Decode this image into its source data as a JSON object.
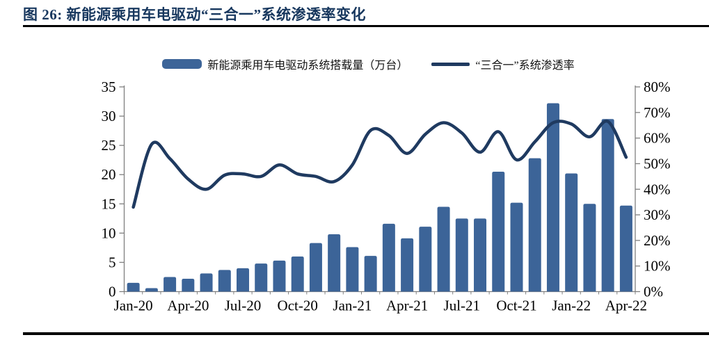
{
  "figure": {
    "title": "图 26:  新能源乘用车电驱动“三合一”系统渗透率变化"
  },
  "legend": {
    "bar_label": "新能源乘用车电驱动系统搭载量（万台）",
    "line_label": "“三合一”系统渗透率"
  },
  "colors": {
    "bar": "#3C6498",
    "line": "#1F3A60",
    "title": "#17375E",
    "axis": "#7f7f7f",
    "tick_text": "#000000",
    "rule": "#000000"
  },
  "chart_data": {
    "type": "bar+line combo",
    "title": "图 26: 新能源乘用车电驱动“三合一”系统渗透率变化",
    "categories": [
      "Jan-20",
      "Feb-20",
      "Mar-20",
      "Apr-20",
      "May-20",
      "Jun-20",
      "Jul-20",
      "Aug-20",
      "Sep-20",
      "Oct-20",
      "Nov-20",
      "Dec-20",
      "Jan-21",
      "Feb-21",
      "Mar-21",
      "Apr-21",
      "May-21",
      "Jun-21",
      "Jul-21",
      "Aug-21",
      "Sep-21",
      "Oct-21",
      "Nov-21",
      "Dec-21",
      "Jan-22",
      "Feb-22",
      "Mar-22",
      "Apr-22"
    ],
    "x_tick_labels": [
      "Jan-20",
      "Apr-20",
      "Jul-20",
      "Oct-20",
      "Jan-21",
      "Apr-21",
      "Jul-21",
      "Oct-21",
      "Jan-22",
      "Apr-22"
    ],
    "x_tick_every": 3,
    "series": [
      {
        "name": "新能源乘用车电驱动系统搭载量（万台）",
        "type": "bar",
        "axis": "left",
        "values": [
          1.5,
          0.6,
          2.5,
          2.2,
          3.1,
          3.7,
          4.0,
          4.8,
          5.3,
          6.0,
          8.3,
          9.8,
          7.6,
          6.1,
          11.6,
          9.1,
          11.1,
          14.5,
          12.5,
          12.5,
          20.5,
          15.2,
          22.8,
          32.2,
          20.2,
          15.0,
          29.5,
          14.7
        ]
      },
      {
        "name": "“三合一”系统渗透率",
        "type": "line",
        "axis": "right",
        "unit": "%",
        "values": [
          33,
          57.5,
          52,
          44,
          40,
          45.5,
          46,
          45,
          49.5,
          46,
          45,
          43,
          49.5,
          63,
          61,
          54,
          61.5,
          66,
          62,
          54.5,
          62.5,
          51.5,
          58.5,
          66,
          65.5,
          60.5,
          66.5,
          52.5
        ]
      }
    ],
    "left_axis": {
      "min": 0,
      "max": 35,
      "step": 5,
      "ticks": [
        "0",
        "5",
        "10",
        "15",
        "20",
        "25",
        "30",
        "35"
      ]
    },
    "right_axis": {
      "min": 0,
      "max": 80,
      "step": 10,
      "ticks": [
        "0%",
        "10%",
        "20%",
        "30%",
        "40%",
        "50%",
        "60%",
        "70%",
        "80%"
      ]
    },
    "grid": false,
    "legend_position": "top"
  }
}
